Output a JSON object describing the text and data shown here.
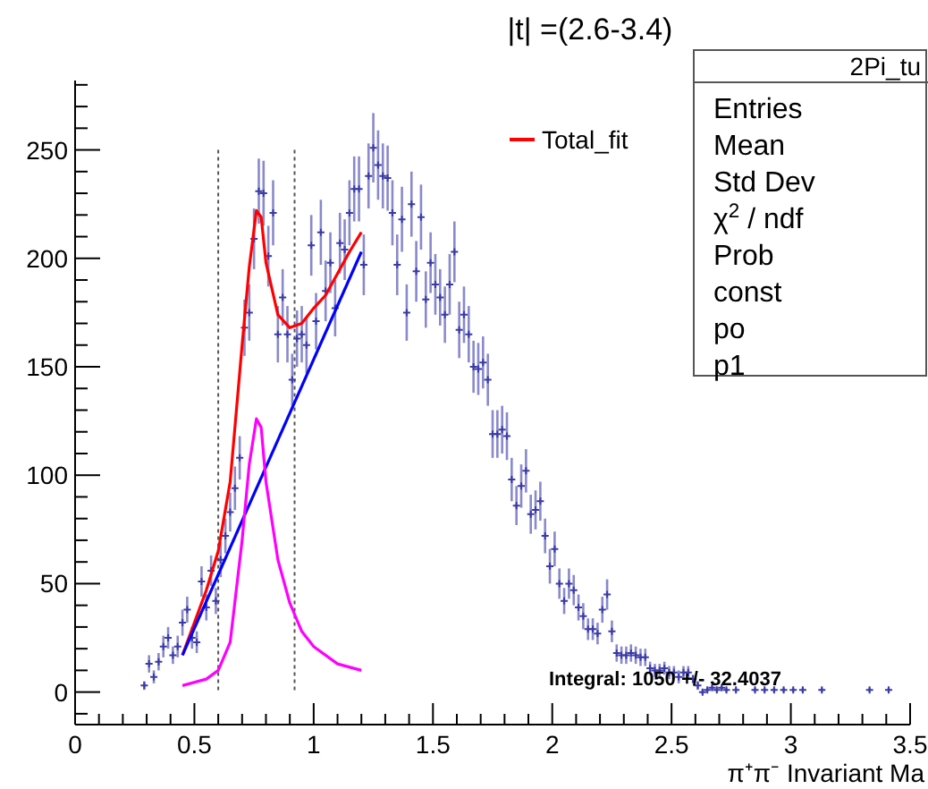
{
  "chart_data": {
    "type": "scatter",
    "title": "|t| =(2.6-3.4)",
    "xlabel": "π⁺π⁻ Invariant Ma",
    "xlim": [
      0,
      3.5
    ],
    "ylim": [
      -15,
      282
    ],
    "xticks": [
      0,
      {
        "value": 0.1,
        "label": null
      },
      {
        "value": 0.2,
        "label": null
      },
      {
        "value": 0.3,
        "label": null
      },
      {
        "value": 0.4,
        "label": null
      },
      0.5,
      {
        "value": 0.6,
        "label": null
      },
      {
        "value": 0.7,
        "label": null
      },
      {
        "value": 0.8,
        "label": null
      },
      {
        "value": 0.9,
        "label": null
      },
      1,
      {
        "value": 1.1,
        "label": null
      },
      {
        "value": 1.2,
        "label": null
      },
      {
        "value": 1.3,
        "label": null
      },
      {
        "value": 1.4,
        "label": null
      },
      1.5,
      {
        "value": 1.6,
        "label": null
      },
      {
        "value": 1.7,
        "label": null
      },
      {
        "value": 1.8,
        "label": null
      },
      {
        "value": 1.9,
        "label": null
      },
      2,
      {
        "value": 2.1,
        "label": null
      },
      {
        "value": 2.2,
        "label": null
      },
      {
        "value": 2.3,
        "label": null
      },
      {
        "value": 2.4,
        "label": null
      },
      2.5,
      {
        "value": 2.6,
        "label": null
      },
      {
        "value": 2.7,
        "label": null
      },
      {
        "value": 2.8,
        "label": null
      },
      {
        "value": 2.9,
        "label": null
      },
      3,
      {
        "value": 3.1,
        "label": null
      },
      {
        "value": 3.2,
        "label": null
      },
      {
        "value": 3.3,
        "label": null
      },
      {
        "value": 3.4,
        "label": null
      },
      3.5
    ],
    "yticks": [
      {
        "value": -10,
        "label": null
      },
      0,
      {
        "value": 10,
        "label": null
      },
      {
        "value": 20,
        "label": null
      },
      {
        "value": 30,
        "label": null
      },
      {
        "value": 40,
        "label": null
      },
      50,
      {
        "value": 60,
        "label": null
      },
      {
        "value": 70,
        "label": null
      },
      {
        "value": 80,
        "label": null
      },
      {
        "value": 90,
        "label": null
      },
      100,
      {
        "value": 110,
        "label": null
      },
      {
        "value": 120,
        "label": null
      },
      {
        "value": 130,
        "label": null
      },
      {
        "value": 140,
        "label": null
      },
      150,
      {
        "value": 160,
        "label": null
      },
      {
        "value": 170,
        "label": null
      },
      {
        "value": 180,
        "label": null
      },
      {
        "value": 190,
        "label": null
      },
      200,
      {
        "value": 210,
        "label": null
      },
      {
        "value": 220,
        "label": null
      },
      {
        "value": 230,
        "label": null
      },
      {
        "value": 240,
        "label": null
      },
      250,
      {
        "value": 260,
        "label": null
      },
      {
        "value": 270,
        "label": null
      },
      {
        "value": 280,
        "label": null
      }
    ],
    "grid": false,
    "legend": "top right",
    "marker": "cross",
    "ref_lines": [
      {
        "axis": "x",
        "value": 0.6,
        "color": "#555555",
        "line_style": "dotted"
      },
      {
        "axis": "x",
        "value": 0.92,
        "color": "#555555",
        "line_style": "dotted"
      }
    ],
    "annotations": [
      "2Pi_tu",
      "Entries",
      "Mean",
      "Std Dev",
      "χ$^{2}$ / ndf",
      "Prob",
      "const",
      "po",
      "p1",
      "Integral: 1050 +/- 32.4037"
    ],
    "series": [
      {
        "color": "#3a3aa8",
        "x": [
          0.29,
          0.31,
          0.33,
          0.35,
          0.37,
          0.39,
          0.41,
          0.43,
          0.45,
          0.47,
          0.49,
          0.51,
          0.53,
          0.55,
          0.57,
          0.59,
          0.61,
          0.63,
          0.65,
          0.67,
          0.69,
          0.71,
          0.73,
          0.75,
          0.77,
          0.79,
          0.81,
          0.83,
          0.85,
          0.87,
          0.89,
          0.91,
          0.93,
          0.95,
          0.97,
          0.99,
          1.01,
          1.03,
          1.05,
          1.07,
          1.09,
          1.11,
          1.13,
          1.15,
          1.17,
          1.19,
          1.21,
          1.23,
          1.25,
          1.27,
          1.29,
          1.31,
          1.33,
          1.35,
          1.37,
          1.39,
          1.41,
          1.43,
          1.45,
          1.47,
          1.49,
          1.51,
          1.53,
          1.55,
          1.57,
          1.59,
          1.61,
          1.63,
          1.65,
          1.67,
          1.69,
          1.71,
          1.73,
          1.75,
          1.77,
          1.79,
          1.81,
          1.83,
          1.85,
          1.87,
          1.89,
          1.91,
          1.93,
          1.95,
          1.97,
          1.99,
          2.01,
          2.03,
          2.05,
          2.07,
          2.09,
          2.11,
          2.13,
          2.15,
          2.17,
          2.19,
          2.21,
          2.23,
          2.25,
          2.27,
          2.29,
          2.31,
          2.33,
          2.35,
          2.37,
          2.39,
          2.41,
          2.43,
          2.45,
          2.47,
          2.49,
          2.51,
          2.53,
          2.55,
          2.57,
          2.59,
          2.61,
          2.63,
          2.65,
          2.67,
          2.69,
          2.71,
          2.73,
          2.77,
          2.85,
          2.89,
          2.93,
          2.97,
          3.01,
          3.05,
          3.13,
          3.33,
          3.41
        ],
        "values": [
          3,
          13,
          7,
          14,
          21,
          25,
          17,
          21,
          32,
          38,
          25,
          23,
          51,
          39,
          56,
          42,
          61,
          72,
          83,
          94,
          108,
          168,
          175,
          209,
          231,
          230,
          201,
          221,
          165,
          182,
          165,
          144,
          163,
          165,
          160,
          206,
          171,
          212,
          185,
          198,
          177,
          207,
          204,
          221,
          232,
          232,
          197,
          238,
          251,
          243,
          238,
          237,
          221,
          197,
          218,
          175,
          225,
          194,
          219,
          181,
          198,
          188,
          182,
          174,
          188,
          203,
          167,
          174,
          165,
          150,
          149,
          152,
          144,
          119,
          119,
          121,
          118,
          98,
          86,
          95,
          102,
          82,
          84,
          88,
          72,
          58,
          66,
          50,
          42,
          50,
          47,
          39,
          35,
          29,
          29,
          27,
          38,
          45,
          28,
          18,
          17,
          17,
          18,
          17,
          16,
          16,
          11,
          10,
          10,
          11,
          9,
          9,
          7,
          9,
          9,
          6,
          3,
          0,
          1,
          2,
          1,
          2,
          1,
          1,
          1,
          1,
          1,
          1,
          1,
          1,
          1,
          1,
          1
        ],
        "errors": [
          2,
          4,
          3,
          4,
          5,
          5,
          4,
          5,
          6,
          6,
          5,
          5,
          7,
          6,
          7,
          6,
          8,
          8,
          9,
          10,
          10,
          13,
          13,
          14,
          15,
          15,
          14,
          15,
          13,
          13,
          13,
          12,
          13,
          13,
          13,
          14,
          13,
          15,
          14,
          14,
          13,
          14,
          14,
          15,
          15,
          15,
          14,
          15,
          16,
          16,
          15,
          15,
          15,
          14,
          15,
          13,
          15,
          14,
          15,
          13,
          14,
          14,
          13,
          13,
          14,
          14,
          13,
          13,
          13,
          12,
          12,
          12,
          12,
          11,
          11,
          11,
          11,
          10,
          9,
          10,
          10,
          9,
          9,
          9,
          8,
          8,
          8,
          7,
          6,
          7,
          7,
          6,
          6,
          5,
          5,
          5,
          6,
          7,
          5,
          4,
          4,
          4,
          4,
          4,
          4,
          4,
          3,
          3,
          3,
          3,
          3,
          3,
          3,
          3,
          3,
          2,
          2,
          1,
          1,
          1,
          1,
          1,
          1,
          1,
          1,
          1,
          1,
          1,
          1,
          1,
          1,
          1,
          1
        ]
      },
      {
        "type": "line",
        "name": "Total_fit",
        "color": "#ff0000",
        "marker": "none",
        "x": [
          0.45,
          0.55,
          0.6,
          0.65,
          0.7,
          0.73,
          0.76,
          0.78,
          0.8,
          0.85,
          0.9,
          0.95,
          1.0,
          1.05,
          1.1,
          1.15,
          1.2
        ],
        "values": [
          17,
          47,
          65,
          97,
          160,
          196,
          222,
          219,
          198,
          174,
          168,
          170,
          177,
          183,
          193,
          203,
          212
        ]
      },
      {
        "type": "line",
        "color": "#0000ff",
        "marker": "none",
        "x": [
          0.45,
          1.2
        ],
        "values": [
          17,
          203
        ]
      },
      {
        "type": "line",
        "color": "#ff00ff",
        "marker": "none",
        "x": [
          0.45,
          0.55,
          0.6,
          0.65,
          0.7,
          0.73,
          0.76,
          0.78,
          0.8,
          0.85,
          0.9,
          0.95,
          1.0,
          1.1,
          1.2
        ],
        "values": [
          3,
          6,
          10,
          23,
          70,
          105,
          126,
          122,
          97,
          61,
          41,
          28,
          21,
          13,
          10
        ]
      }
    ]
  }
}
